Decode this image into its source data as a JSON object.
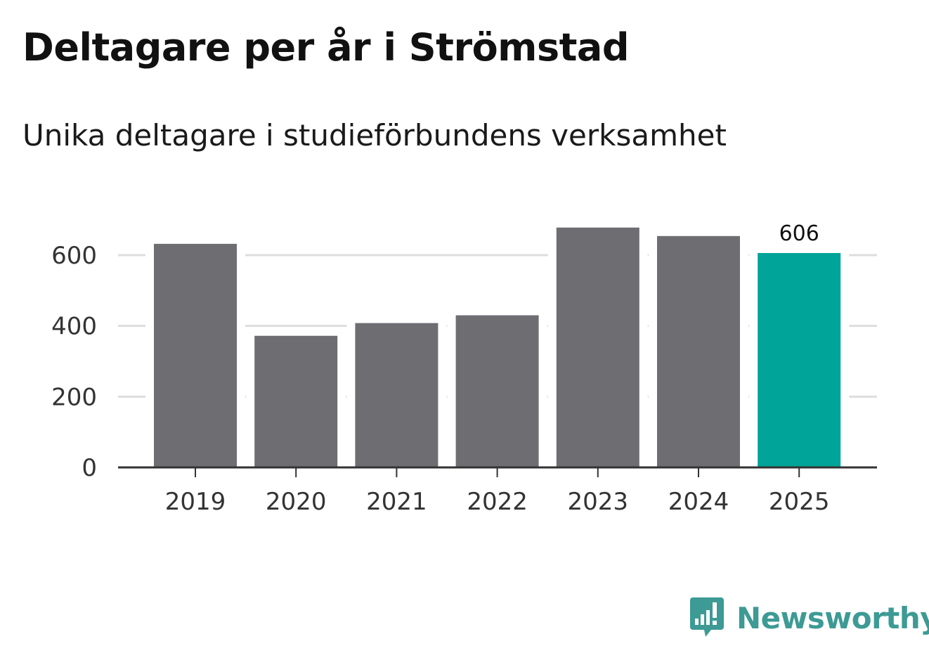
{
  "title": "Deltagare per år i Strömstad",
  "subtitle": "Unika deltagare i studieförbundens verksamhet",
  "brand": {
    "name": "Newsworthy",
    "color": "#3d9a94"
  },
  "colors": {
    "bar": "#6e6d72",
    "highlight": "#00a499",
    "grid": "#dddddd",
    "axis": "#333333"
  },
  "chart_data": {
    "type": "bar",
    "title": "Deltagare per år i Strömstad",
    "subtitle": "Unika deltagare i studieförbundens verksamhet",
    "categories": [
      "2019",
      "2020",
      "2021",
      "2022",
      "2023",
      "2024",
      "2025"
    ],
    "values": [
      632,
      372,
      408,
      430,
      678,
      654,
      606
    ],
    "highlight_index": 6,
    "data_labels": [
      {
        "index": 6,
        "text": "606"
      }
    ],
    "y_ticks": [
      0,
      200,
      400,
      600
    ],
    "ylim": [
      0,
      700
    ],
    "xlabel": "",
    "ylabel": "",
    "grid": true
  }
}
